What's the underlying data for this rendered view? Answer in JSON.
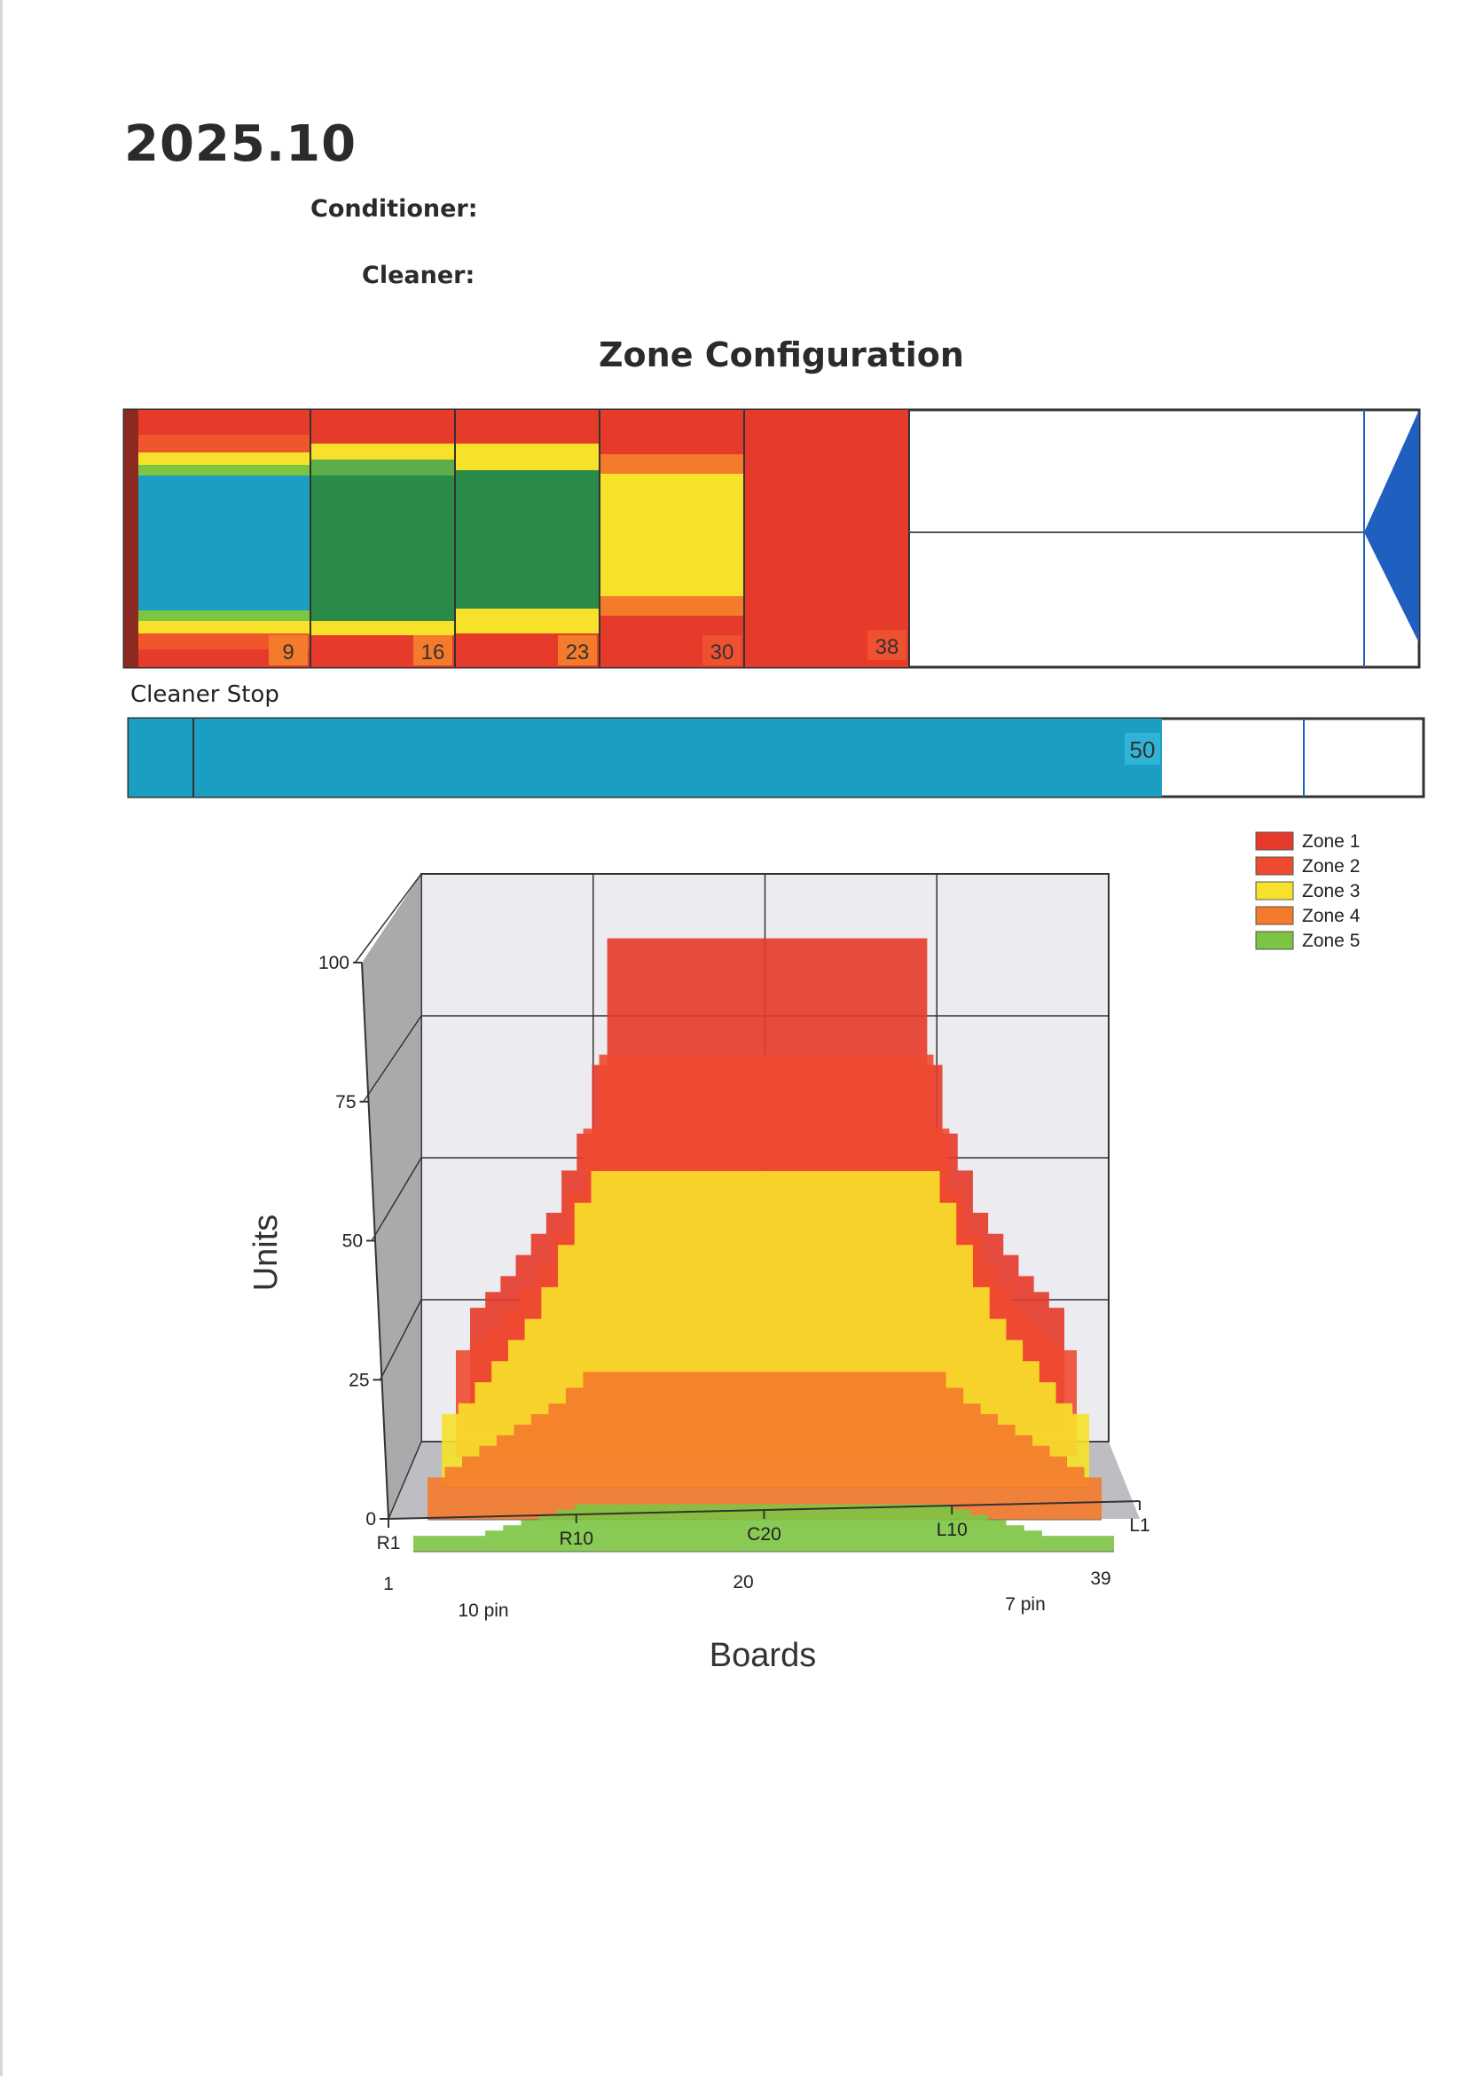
{
  "header": {
    "date": "2025.10",
    "conditioner_label": "Conditioner:",
    "cleaner_label": "Cleaner:"
  },
  "zone_config": {
    "title": "Zone Configuration",
    "markers": [
      "9",
      "16",
      "23",
      "30",
      "38"
    ]
  },
  "cleaner_stop": {
    "label": "Cleaner Stop",
    "value": "50"
  },
  "colors": {
    "zone1": "#e63a2a",
    "zone2": "#ee4a30",
    "zone3": "#f7e12a",
    "zone4": "#f47a2c",
    "zone5": "#7cc443",
    "teal": "#1a9fc2",
    "green": "#2a8a48",
    "blue": "#1f5fbf"
  },
  "chart_data": {
    "type": "area",
    "xlabel": "Boards",
    "ylabel": "Units",
    "ylim": [
      0,
      100
    ],
    "yticks": [
      "0",
      "25",
      "50",
      "75",
      "100"
    ],
    "xticks": [
      "R1",
      "R10",
      "C20",
      "L10",
      "L1"
    ],
    "board_numbers": [
      "1",
      "20",
      "39"
    ],
    "annotations": [
      "10 pin",
      "7 pin"
    ],
    "x": [
      1,
      2,
      3,
      4,
      5,
      6,
      7,
      8,
      9,
      10,
      11,
      12,
      13,
      14,
      15,
      16,
      17,
      18,
      19,
      20,
      21,
      22,
      23,
      24,
      25,
      26,
      27,
      28,
      29,
      30,
      31,
      32,
      33,
      34,
      35,
      36,
      37,
      38,
      39
    ],
    "series": [
      {
        "name": "Zone 1",
        "values": [
          22,
          25,
          28,
          32,
          36,
          40,
          48,
          55,
          68,
          92,
          92,
          92,
          92,
          92,
          92,
          92,
          92,
          92,
          92,
          92,
          92,
          92,
          92,
          92,
          92,
          92,
          92,
          92,
          92,
          92,
          68,
          55,
          48,
          40,
          36,
          32,
          28,
          25,
          22
        ]
      },
      {
        "name": "Zone 2",
        "values": [
          20,
          22,
          25,
          28,
          32,
          36,
          42,
          50,
          62,
          76,
          76,
          76,
          76,
          76,
          76,
          76,
          76,
          76,
          76,
          76,
          76,
          76,
          76,
          76,
          76,
          76,
          76,
          76,
          76,
          76,
          62,
          50,
          42,
          36,
          32,
          28,
          25,
          22,
          20
        ]
      },
      {
        "name": "Zone 3",
        "values": [
          14,
          16,
          20,
          24,
          28,
          32,
          38,
          46,
          54,
          60,
          60,
          60,
          60,
          60,
          60,
          60,
          60,
          60,
          60,
          60,
          60,
          60,
          60,
          60,
          60,
          60,
          60,
          60,
          60,
          60,
          54,
          46,
          38,
          32,
          28,
          24,
          20,
          16,
          14
        ]
      },
      {
        "name": "Zone 4",
        "values": [
          8,
          10,
          12,
          14,
          16,
          18,
          20,
          22,
          25,
          28,
          28,
          28,
          28,
          28,
          28,
          28,
          28,
          28,
          28,
          28,
          28,
          28,
          28,
          28,
          28,
          28,
          28,
          28,
          28,
          28,
          25,
          22,
          20,
          18,
          16,
          14,
          12,
          10,
          8
        ]
      },
      {
        "name": "Zone 5",
        "values": [
          3,
          3,
          3,
          3,
          4,
          5,
          6,
          7,
          8,
          9,
          9,
          9,
          9,
          9,
          9,
          9,
          9,
          9,
          9,
          9,
          9,
          9,
          9,
          9,
          9,
          9,
          9,
          9,
          9,
          9,
          8,
          7,
          6,
          5,
          4,
          3,
          3,
          3,
          3
        ]
      }
    ],
    "legend": "top-right",
    "grid": true
  }
}
